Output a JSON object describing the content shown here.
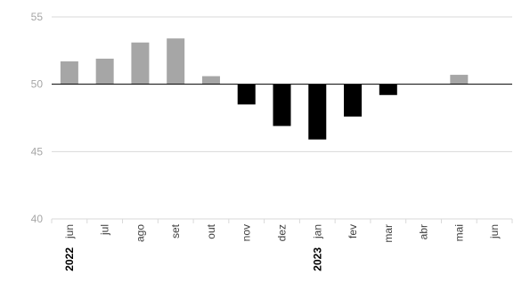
{
  "chart_data": {
    "type": "bar",
    "title": "",
    "xlabel": "",
    "ylabel": "",
    "baseline": 50,
    "ylim": [
      40,
      55
    ],
    "yticks": [
      40,
      45,
      50,
      55
    ],
    "grid": true,
    "categories": [
      "jun",
      "jul",
      "ago",
      "set",
      "out",
      "nov",
      "dez",
      "jan",
      "fev",
      "mar",
      "abr",
      "mai",
      "jun"
    ],
    "year_labels": [
      "2022",
      "",
      "",
      "",
      "",
      "",
      "",
      "2023",
      "",
      "",
      "",
      "",
      ""
    ],
    "values": [
      51.7,
      51.9,
      53.1,
      53.4,
      50.6,
      48.5,
      46.9,
      45.9,
      47.6,
      49.2,
      50.0,
      50.7,
      50.0
    ],
    "colors": {
      "above": "#a6a6a6",
      "below": "#000000",
      "grid": "#d9d9d9",
      "axis": "#000000"
    }
  }
}
